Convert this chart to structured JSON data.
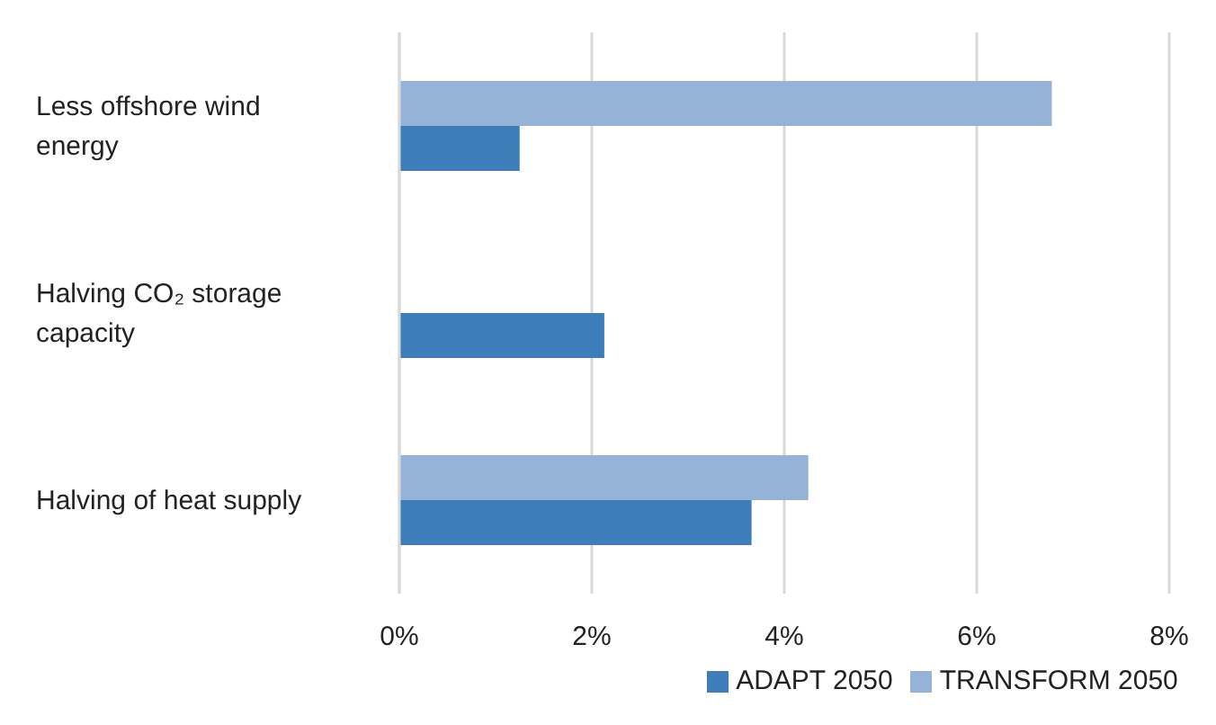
{
  "chart_data": {
    "type": "bar",
    "orientation": "horizontal",
    "categories": [
      "Less offshore wind energy",
      "Halving CO₂ storage capacity",
      "Halving of heat supply"
    ],
    "series": [
      {
        "name": "TRANSFORM 2050",
        "color": "#95b3d7",
        "values": [
          6.78,
          null,
          4.25
        ]
      },
      {
        "name": "ADAPT 2050",
        "color": "#3c7dba",
        "values": [
          1.25,
          2.13,
          3.66
        ]
      }
    ],
    "xlim": [
      0,
      8
    ],
    "xticks": [
      {
        "value": 0,
        "label": "0%"
      },
      {
        "value": 2,
        "label": "2%"
      },
      {
        "value": 4,
        "label": "4%"
      },
      {
        "value": 6,
        "label": "6%"
      },
      {
        "value": 8,
        "label": "8%"
      }
    ],
    "grid": "x",
    "legend": "bottom"
  }
}
